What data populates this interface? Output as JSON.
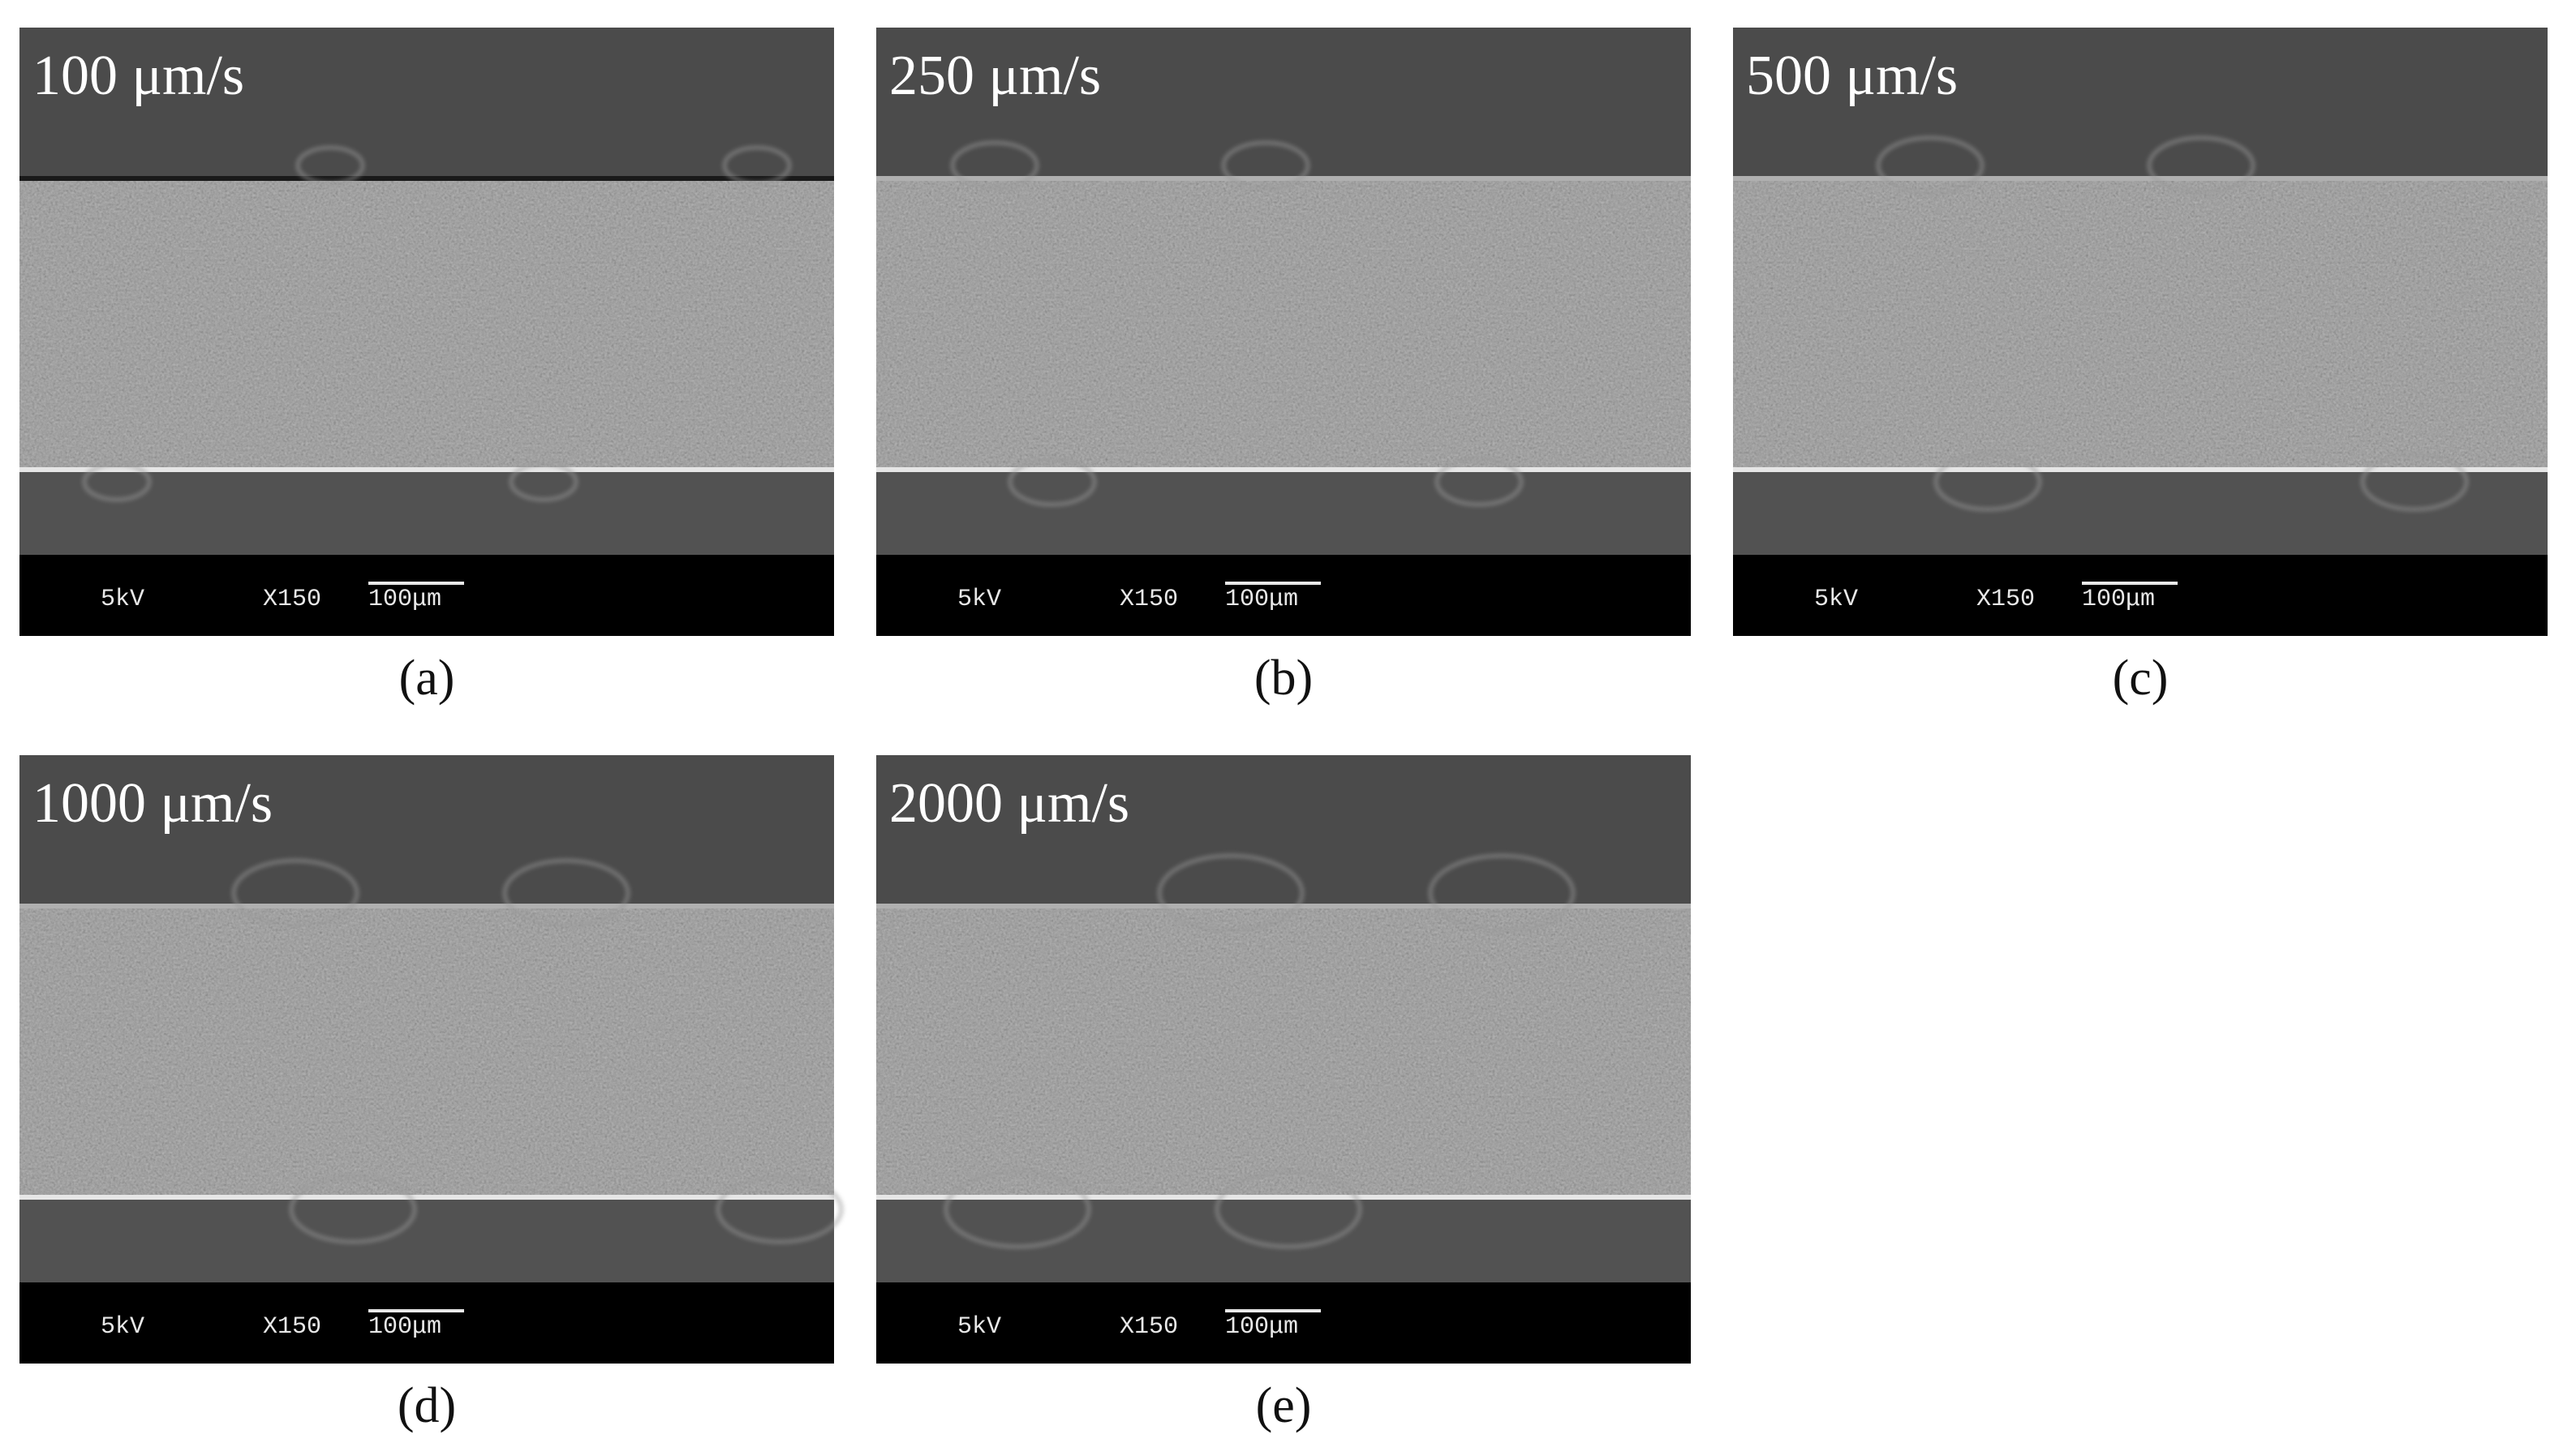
{
  "panels": [
    {
      "speed": "100 μm/s",
      "caption": "(a)",
      "voltage": "5kV",
      "magnification": "X150",
      "scale": "100μm"
    },
    {
      "speed": "250 μm/s",
      "caption": "(b)",
      "voltage": "5kV",
      "magnification": "X150",
      "scale": "100μm"
    },
    {
      "speed": "500 μm/s",
      "caption": "(c)",
      "voltage": "5kV",
      "magnification": "X150",
      "scale": "100μm"
    },
    {
      "speed": "1000 μm/s",
      "caption": "(d)",
      "voltage": "5kV",
      "magnification": "X150",
      "scale": "100μm"
    },
    {
      "speed": "2000 μm/s",
      "caption": "(e)",
      "voltage": "5kV",
      "magnification": "X150",
      "scale": "100μm"
    }
  ]
}
